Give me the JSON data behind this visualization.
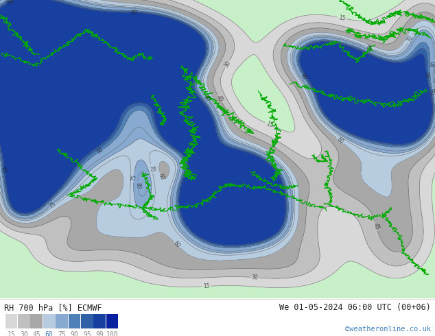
{
  "title_left": "RH 700 hPa [%] ECMWF",
  "title_right": "We 01-05-2024 06:00 UTC (00+06)",
  "credit": "©weatheronline.co.uk",
  "colorbar_values": [
    "15",
    "30",
    "45",
    "60",
    "75",
    "90",
    "95",
    "99",
    "100"
  ],
  "colorbar_colors": [
    "#d8d8d8",
    "#c0c0c0",
    "#a8a8a8",
    "#b8cce0",
    "#88aad0",
    "#5080b8",
    "#3060a8",
    "#1840a0",
    "#0820a0"
  ],
  "bg_color": "#ffffff",
  "fig_width": 6.34,
  "fig_height": 4.9,
  "dpi": 100,
  "text_color_left": "#202020",
  "text_color_right": "#202020",
  "text_color_credit": "#4080c0",
  "colorbar_label_colors": [
    "#909090",
    "#909090",
    "#909090",
    "#4080c0",
    "#909090",
    "#909090",
    "#909090",
    "#909090",
    "#909090"
  ],
  "land_green_color": "#90ee90",
  "contour_levels": [
    15,
    30,
    45,
    60,
    70,
    75,
    80,
    90,
    95,
    99
  ],
  "fill_levels": [
    0,
    15,
    30,
    45,
    60,
    75,
    90,
    95,
    99,
    101
  ],
  "fill_colors": [
    "#c8f0c8",
    "#d8d8d8",
    "#c0c0c0",
    "#a8a8a8",
    "#b8cce0",
    "#88aad0",
    "#5080b8",
    "#3060a8",
    "#1840a0"
  ]
}
